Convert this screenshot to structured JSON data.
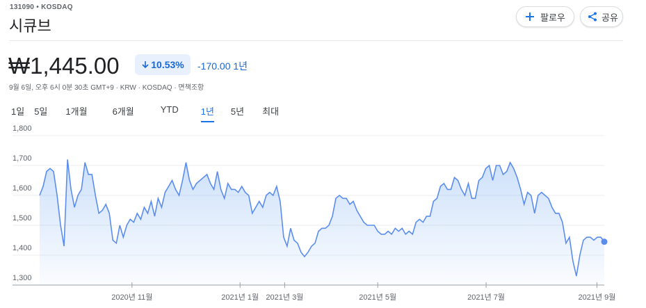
{
  "header": {
    "ticker": "131090 • KOSDAQ",
    "name": "시큐브",
    "buttons": [
      "팔로우",
      "공유"
    ]
  },
  "price": {
    "value": "₩1,445.00",
    "change_percent": "10.53%",
    "change": "-170.00",
    "period": "1년",
    "timestamp": "9월 6일, 오후 6시 0분 30초 GMT+9 · KRW · KOSDAQ · 면책조항"
  },
  "tabs": {
    "items": [
      "1일",
      "5일",
      "1개월",
      "6개월",
      "YTD",
      "1년",
      "5년",
      "최대"
    ],
    "active": 5
  },
  "chart_data": {
    "type": "area",
    "color": "#5b8def",
    "values": [
      1600,
      1630,
      1680,
      1690,
      1680,
      1600,
      1500,
      1430,
      1720,
      1620,
      1560,
      1600,
      1620,
      1710,
      1670,
      1670,
      1600,
      1540,
      1550,
      1570,
      1540,
      1450,
      1440,
      1500,
      1460,
      1500,
      1520,
      1510,
      1540,
      1520,
      1560,
      1540,
      1580,
      1530,
      1590,
      1560,
      1610,
      1630,
      1650,
      1620,
      1600,
      1650,
      1710,
      1650,
      1620,
      1640,
      1650,
      1660,
      1670,
      1640,
      1620,
      1680,
      1620,
      1590,
      1640,
      1620,
      1620,
      1610,
      1630,
      1610,
      1600,
      1540,
      1560,
      1580,
      1560,
      1600,
      1610,
      1600,
      1630,
      1580,
      1460,
      1430,
      1490,
      1450,
      1440,
      1410,
      1395,
      1410,
      1430,
      1440,
      1480,
      1490,
      1490,
      1500,
      1530,
      1590,
      1600,
      1590,
      1590,
      1570,
      1580,
      1550,
      1530,
      1510,
      1500,
      1500,
      1500,
      1480,
      1470,
      1470,
      1480,
      1470,
      1490,
      1480,
      1490,
      1470,
      1480,
      1470,
      1510,
      1520,
      1510,
      1530,
      1530,
      1580,
      1590,
      1630,
      1640,
      1620,
      1620,
      1660,
      1650,
      1620,
      1600,
      1640,
      1590,
      1590,
      1650,
      1660,
      1690,
      1700,
      1650,
      1700,
      1700,
      1670,
      1680,
      1710,
      1690,
      1660,
      1620,
      1570,
      1610,
      1600,
      1540,
      1600,
      1610,
      1600,
      1590,
      1560,
      1540,
      1540,
      1510,
      1440,
      1460,
      1380,
      1330,
      1400,
      1450,
      1460,
      1460,
      1450,
      1460,
      1460,
      1445
    ],
    "xlim": [
      0,
      162
    ],
    "xticks": [
      {
        "value": 26.5,
        "label": "2020년 11월"
      },
      {
        "value": 57.5,
        "label": "2021년 1월"
      },
      {
        "value": 70.3,
        "label": "2021년 3월"
      },
      {
        "value": 97,
        "label": "2021년 5월"
      },
      {
        "value": 128.1,
        "label": "2021년 7월"
      },
      {
        "value": 159.9,
        "label": "2021년 9월"
      }
    ],
    "ylim": [
      1300,
      1800
    ],
    "yticks": [
      {
        "value": 1300,
        "label": "1,300"
      },
      {
        "value": 1400,
        "label": "1,400"
      },
      {
        "value": 1500,
        "label": "1,500"
      },
      {
        "value": 1600,
        "label": "1,600"
      },
      {
        "value": 1700,
        "label": "1,700"
      },
      {
        "value": 1800,
        "label": "1,800"
      }
    ],
    "grid": true
  }
}
